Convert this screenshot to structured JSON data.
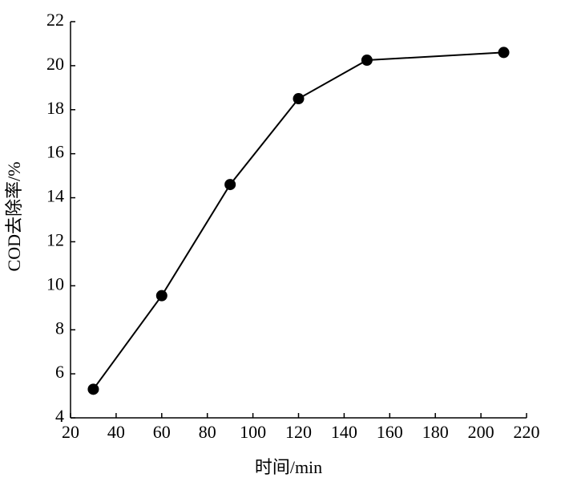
{
  "chart_data": {
    "type": "line",
    "x_label": "时间/min",
    "y_label": "COD去除率/%",
    "x": [
      30,
      60,
      90,
      120,
      150,
      210
    ],
    "series": [
      {
        "color": "#000000",
        "values": [
          5.3,
          9.55,
          14.6,
          18.5,
          20.25,
          20.6
        ]
      }
    ],
    "xlim": [
      20,
      220
    ],
    "xticks": [
      20,
      40,
      60,
      80,
      100,
      120,
      140,
      160,
      180,
      200,
      220
    ],
    "ylim": [
      4,
      22
    ],
    "yticks": [
      4,
      6,
      8,
      10,
      12,
      14,
      16,
      18,
      20,
      22
    ]
  }
}
